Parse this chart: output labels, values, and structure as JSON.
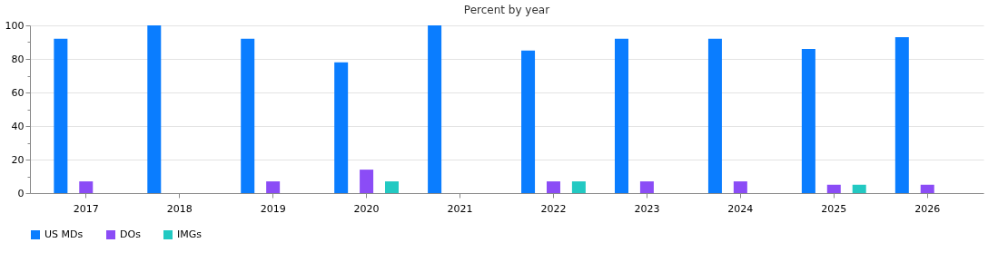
{
  "chart_data": {
    "type": "bar",
    "title": "Percent by year",
    "categories": [
      "2017",
      "2018",
      "2019",
      "2020",
      "2021",
      "2022",
      "2023",
      "2024",
      "2025",
      "2026"
    ],
    "series": [
      {
        "name": "US MDs",
        "color": "#0a7dff",
        "values": [
          92,
          100,
          92,
          78,
          100,
          85,
          92,
          92,
          86,
          93
        ]
      },
      {
        "name": "DOs",
        "color": "#8b4cf6",
        "values": [
          7,
          0,
          7,
          14,
          0,
          7,
          7,
          7,
          5,
          5
        ]
      },
      {
        "name": "IMGs",
        "color": "#22c9c2",
        "values": [
          0,
          0,
          0,
          7,
          0,
          7,
          0,
          0,
          5,
          0
        ]
      }
    ],
    "ylim": [
      0,
      100
    ],
    "yticks": [
      0,
      {
        "value": 10,
        "label": null
      },
      20,
      {
        "value": 30,
        "label": null
      },
      40,
      {
        "value": 50,
        "label": null
      },
      60,
      {
        "value": 70,
        "label": null
      },
      80,
      {
        "value": 90,
        "label": null
      },
      100
    ],
    "grid": "y",
    "legend": "bottom"
  }
}
